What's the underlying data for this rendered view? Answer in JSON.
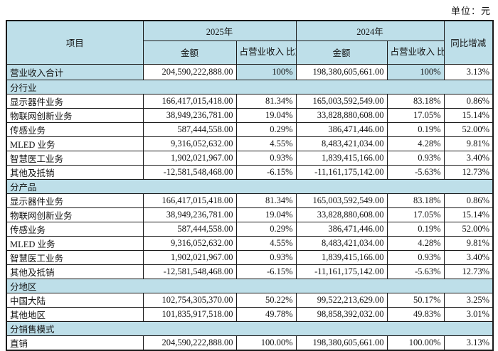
{
  "unit_label": "单位：元",
  "colors": {
    "header_bg": "#bedfe9",
    "border": "#1a1a1a",
    "text": "#141414"
  },
  "table": {
    "headers": {
      "item": "项目",
      "y2025": "2025年",
      "y2024": "2024年",
      "amount_2025": "金额",
      "ratio_2025": "占营业收入\n比重",
      "amount_2024": "金额",
      "ratio_2024": "占营业收入\n比重",
      "yoy": "同比增减"
    },
    "rows": [
      {
        "type": "data",
        "highlight": true,
        "label": "营业收入合计",
        "a2025": "204,590,222,888.00",
        "r2025": "100%",
        "a2024": "198,380,605,661.00",
        "r2024": "100%",
        "yoy": "3.13%"
      },
      {
        "type": "section",
        "label": "分行业"
      },
      {
        "type": "data",
        "label": "显示器件业务",
        "a2025": "166,417,015,418.00",
        "r2025": "81.34%",
        "a2024": "165,003,592,549.00",
        "r2024": "83.18%",
        "yoy": "0.86%"
      },
      {
        "type": "data",
        "label": "物联网创新业务",
        "a2025": "38,949,236,781.00",
        "r2025": "19.04%",
        "a2024": "33,828,880,608.00",
        "r2024": "17.05%",
        "yoy": "15.14%"
      },
      {
        "type": "data",
        "label": "传感业务",
        "a2025": "587,444,558.00",
        "r2025": "0.29%",
        "a2024": "386,471,446.00",
        "r2024": "0.19%",
        "yoy": "52.00%"
      },
      {
        "type": "data",
        "label": "MLED 业务",
        "a2025": "9,316,052,632.00",
        "r2025": "4.55%",
        "a2024": "8,483,421,034.00",
        "r2024": "4.28%",
        "yoy": "9.81%"
      },
      {
        "type": "data",
        "label": "智慧医工业务",
        "a2025": "1,902,021,967.00",
        "r2025": "0.93%",
        "a2024": "1,839,415,166.00",
        "r2024": "0.93%",
        "yoy": "3.40%"
      },
      {
        "type": "data",
        "label": "其他及抵销",
        "a2025": "-12,581,548,468.00",
        "r2025": "-6.15%",
        "a2024": "-11,161,175,142.00",
        "r2024": "-5.63%",
        "yoy": "12.73%"
      },
      {
        "type": "section",
        "label": "分产品"
      },
      {
        "type": "data",
        "label": "显示器件业务",
        "a2025": "166,417,015,418.00",
        "r2025": "81.34%",
        "a2024": "165,003,592,549.00",
        "r2024": "83.18%",
        "yoy": "0.86%"
      },
      {
        "type": "data",
        "label": "物联网创新业务",
        "a2025": "38,949,236,781.00",
        "r2025": "19.04%",
        "a2024": "33,828,880,608.00",
        "r2024": "17.05%",
        "yoy": "15.14%"
      },
      {
        "type": "data",
        "label": "传感业务",
        "a2025": "587,444,558.00",
        "r2025": "0.29%",
        "a2024": "386,471,446.00",
        "r2024": "0.19%",
        "yoy": "52.00%"
      },
      {
        "type": "data",
        "label": "MLED 业务",
        "a2025": "9,316,052,632.00",
        "r2025": "4.55%",
        "a2024": "8,483,421,034.00",
        "r2024": "4.28%",
        "yoy": "9.81%"
      },
      {
        "type": "data",
        "label": "智慧医工业务",
        "a2025": "1,902,021,967.00",
        "r2025": "0.93%",
        "a2024": "1,839,415,166.00",
        "r2024": "0.93%",
        "yoy": "3.40%"
      },
      {
        "type": "data",
        "label": "其他及抵销",
        "a2025": "-12,581,548,468.00",
        "r2025": "-6.15%",
        "a2024": "-11,161,175,142.00",
        "r2024": "-5.63%",
        "yoy": "12.73%"
      },
      {
        "type": "section",
        "label": "分地区"
      },
      {
        "type": "data",
        "label": "中国大陆",
        "a2025": "102,754,305,370.00",
        "r2025": "50.22%",
        "a2024": "99,522,213,629.00",
        "r2024": "50.17%",
        "yoy": "3.25%"
      },
      {
        "type": "data",
        "label": "其他地区",
        "a2025": "101,835,917,518.00",
        "r2025": "49.78%",
        "a2024": "98,858,392,032.00",
        "r2024": "49.83%",
        "yoy": "3.01%"
      },
      {
        "type": "section",
        "label": "分销售模式"
      },
      {
        "type": "data",
        "label": "直销",
        "a2025": "204,590,222,888.00",
        "r2025": "100.00%",
        "a2024": "198,380,605,661.00",
        "r2024": "100.00%",
        "yoy": "3.13%"
      }
    ]
  }
}
